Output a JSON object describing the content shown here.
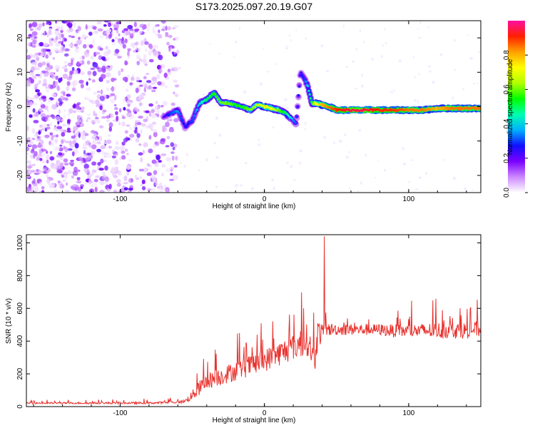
{
  "title": "S173.2025.097.20.19.G07",
  "colors": {
    "snr_line": "#e8322e",
    "frame": "#000000",
    "colorbar_stops": [
      "#ffffff",
      "#cc88ff",
      "#7a00ff",
      "#1010ff",
      "#00b0ff",
      "#00ffb0",
      "#00ff00",
      "#b0ff00",
      "#ffff00",
      "#ffa000",
      "#ff2000",
      "#ff10a0"
    ]
  },
  "chart_data": [
    {
      "type": "heatmap",
      "name": "spectrogram",
      "xlabel": "Height of straight line (km)",
      "ylabel": "Frequency (Hz)",
      "xlim": [
        -165,
        150
      ],
      "ylim": [
        -25,
        25
      ],
      "xticks": [
        -100,
        0,
        100
      ],
      "yticks": [
        -20,
        -10,
        0,
        10,
        20
      ],
      "colorbar": {
        "label": "Normalized spectral amplitude",
        "range": [
          0,
          1
        ],
        "ticks": [
          0.0,
          0.2,
          0.4,
          0.6,
          0.8
        ]
      },
      "noise_region_x": [
        -165,
        -60
      ],
      "ridge": {
        "x": [
          -70,
          -65,
          -60,
          -55,
          -50,
          -45,
          -40,
          -35,
          -30,
          -25,
          -20,
          -15,
          -10,
          -5,
          0,
          5,
          10,
          15,
          20,
          22,
          25,
          28,
          30,
          33,
          35,
          40,
          45,
          50,
          60,
          70,
          80,
          90,
          100,
          110,
          120,
          130,
          140,
          150
        ],
        "y": [
          -3,
          -2,
          -1,
          -6,
          -4,
          1,
          2,
          4,
          1,
          1,
          0.5,
          0,
          -1,
          0.5,
          0,
          -0.5,
          -1,
          -2,
          -4,
          -5,
          10,
          8,
          6,
          1,
          1,
          0.5,
          0,
          -1,
          -1,
          -1,
          -1,
          -1,
          -1,
          -1,
          -0.5,
          -0.5,
          -0.5,
          -0.5
        ],
        "intensity": [
          0.2,
          0.3,
          0.35,
          0.25,
          0.3,
          0.4,
          0.5,
          0.55,
          0.6,
          0.6,
          0.55,
          0.55,
          0.6,
          0.65,
          0.7,
          0.7,
          0.6,
          0.5,
          0.35,
          0.3,
          0.25,
          0.3,
          0.4,
          0.55,
          0.7,
          0.8,
          0.85,
          0.9,
          0.95,
          0.95,
          0.9,
          0.9,
          0.85,
          0.85,
          0.8,
          0.85,
          0.85,
          0.85
        ]
      }
    },
    {
      "type": "line",
      "name": "snr",
      "xlabel": "Height of straight line (km)",
      "ylabel": "SNR (10 * v/v)",
      "xlim": [
        -165,
        150
      ],
      "ylim": [
        0,
        1050
      ],
      "xticks": [
        -100,
        0,
        100
      ],
      "yticks": [
        0,
        200,
        400,
        600,
        800,
        1000
      ],
      "envelope": {
        "x": [
          -165,
          -130,
          -100,
          -80,
          -60,
          -55,
          -50,
          -45,
          -40,
          -30,
          -20,
          -10,
          0,
          10,
          20,
          25,
          30,
          33,
          35,
          36,
          38,
          40,
          42,
          45,
          50,
          60,
          70,
          80,
          90,
          100,
          110,
          120,
          130,
          140,
          150
        ],
        "base": [
          20,
          20,
          20,
          20,
          25,
          30,
          60,
          100,
          140,
          170,
          200,
          230,
          260,
          300,
          340,
          360,
          380,
          300,
          250,
          380,
          420,
          440,
          450,
          460,
          460,
          460,
          460,
          460,
          450,
          450,
          450,
          450,
          450,
          450,
          460
        ],
        "noise": [
          10,
          10,
          12,
          12,
          15,
          20,
          60,
          90,
          100,
          110,
          120,
          130,
          140,
          150,
          160,
          180,
          200,
          150,
          150,
          200,
          200,
          90,
          80,
          80,
          70,
          70,
          70,
          70,
          80,
          80,
          90,
          100,
          100,
          100,
          100
        ]
      },
      "peak": {
        "x": 41.5,
        "y": 1040
      }
    }
  ]
}
